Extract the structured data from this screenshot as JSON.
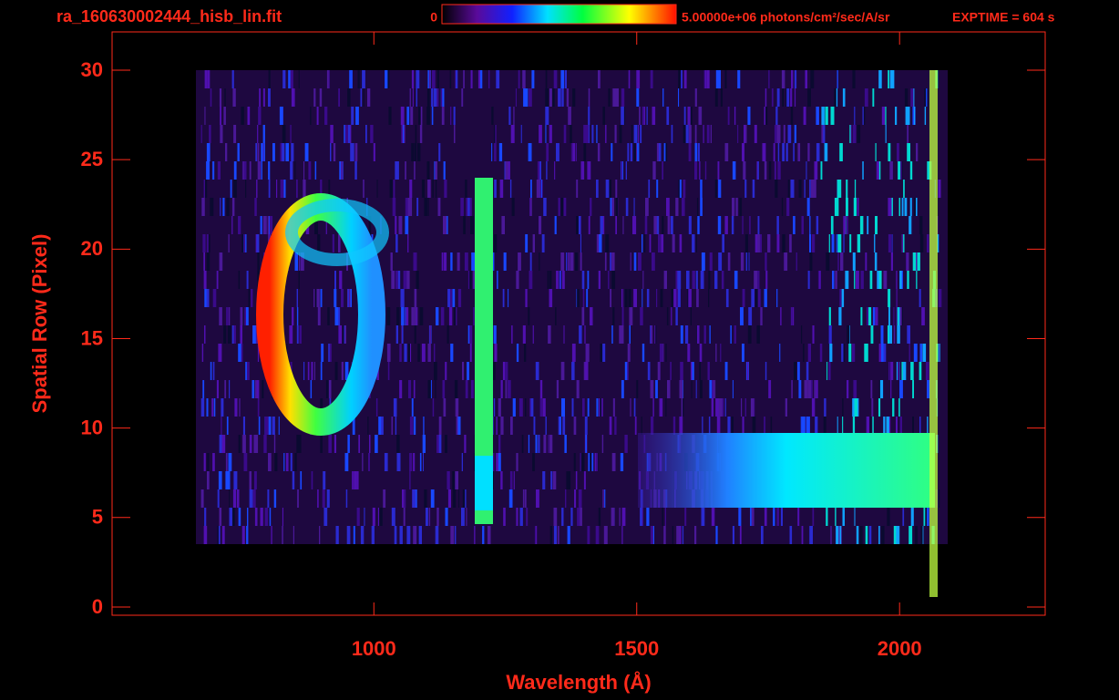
{
  "chart_data": {
    "type": "image",
    "title": "ra_160630002444_hisb_lin.fit",
    "colorbar_min": 0,
    "colorbar_max_label": "5.00000e+06 photons/cm²/sec/A/sr",
    "exposure": "EXPTIME = 604 s",
    "xlabel": "Wavelength (Å)",
    "ylabel": "Spatial Row (Pixel)",
    "xlim": [
      502,
      2277
    ],
    "ylim": [
      -0.46,
      32.14
    ],
    "xticks": [
      1000,
      1500,
      2000
    ],
    "yticks": [
      0,
      5,
      10,
      15,
      20,
      25,
      30
    ],
    "axis_color": "#ff2a1a"
  }
}
